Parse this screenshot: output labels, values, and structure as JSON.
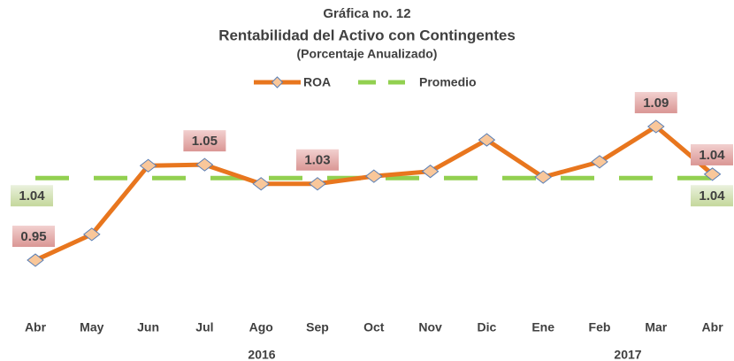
{
  "chart_data": {
    "type": "line",
    "title": "Gráfica no. 12",
    "subtitle": "Rentabilidad del Activo con Contingentes",
    "caption": "(Porcentaje Anualizado)",
    "categories": [
      "Abr",
      "May",
      "Jun",
      "Jul",
      "Ago",
      "Sep",
      "Oct",
      "Nov",
      "Dic",
      "Ene",
      "Feb",
      "Mar",
      "Abr"
    ],
    "year_labels": [
      "2016",
      "2017"
    ],
    "ylim": [
      0.9,
      1.12
    ],
    "legend": "top",
    "series": [
      {
        "name": "ROA",
        "color": "#E8761E",
        "values": [
          0.95,
          0.977,
          1.049,
          1.05,
          1.03,
          1.03,
          1.038,
          1.043,
          1.076,
          1.037,
          1.053,
          1.09,
          1.04
        ],
        "value_labels": [
          "0.95",
          null,
          null,
          "1.05",
          null,
          "1.03",
          null,
          null,
          null,
          null,
          null,
          "1.09",
          "1.04"
        ]
      },
      {
        "name": "Promedio",
        "color": "#92D050",
        "values": [
          1.036,
          1.036,
          1.036,
          1.036,
          1.036,
          1.036,
          1.036,
          1.036,
          1.036,
          1.036,
          1.036,
          1.036,
          1.036
        ],
        "value_labels": [
          "1.04",
          null,
          null,
          null,
          null,
          null,
          null,
          null,
          null,
          null,
          null,
          null,
          "1.04"
        ]
      }
    ]
  }
}
